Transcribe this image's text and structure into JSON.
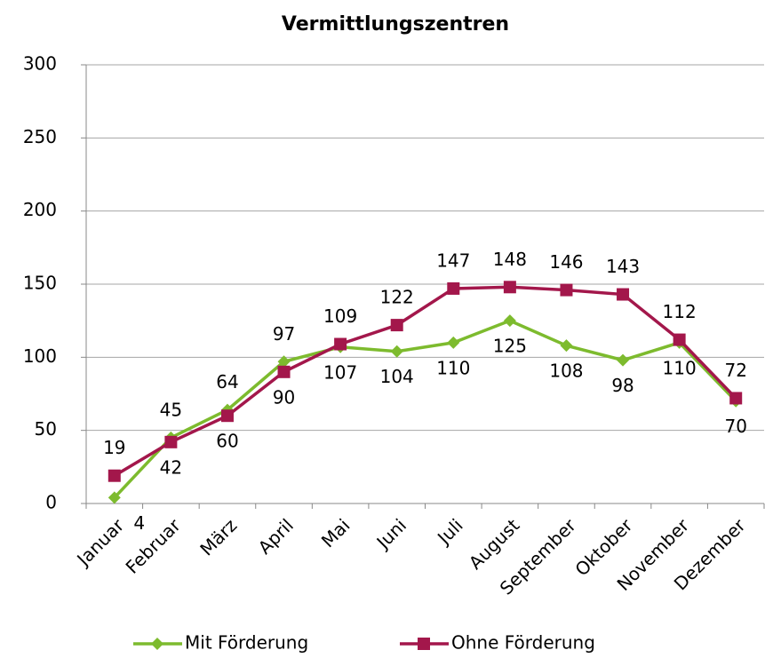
{
  "chart_data": {
    "type": "line",
    "title": "Vermittlungszentren",
    "categories": [
      "Januar",
      "Februar",
      "März",
      "April",
      "Mai",
      "Juni",
      "Juli",
      "August",
      "September",
      "Oktober",
      "November",
      "Dezember"
    ],
    "series": [
      {
        "name": "Mit Förderung",
        "color": "#7dbb2e",
        "marker": "diamond",
        "values": [
          4,
          45,
          64,
          97,
          107,
          104,
          110,
          125,
          108,
          98,
          110,
          70
        ]
      },
      {
        "name": "Ohne Förderung",
        "color": "#a3174b",
        "marker": "square",
        "values": [
          19,
          42,
          60,
          90,
          109,
          122,
          147,
          148,
          146,
          143,
          112,
          72
        ]
      }
    ],
    "ylim": [
      0,
      300
    ],
    "yticks": [
      0,
      50,
      100,
      150,
      200,
      250,
      300
    ],
    "grid": true,
    "legend": "bottom"
  }
}
